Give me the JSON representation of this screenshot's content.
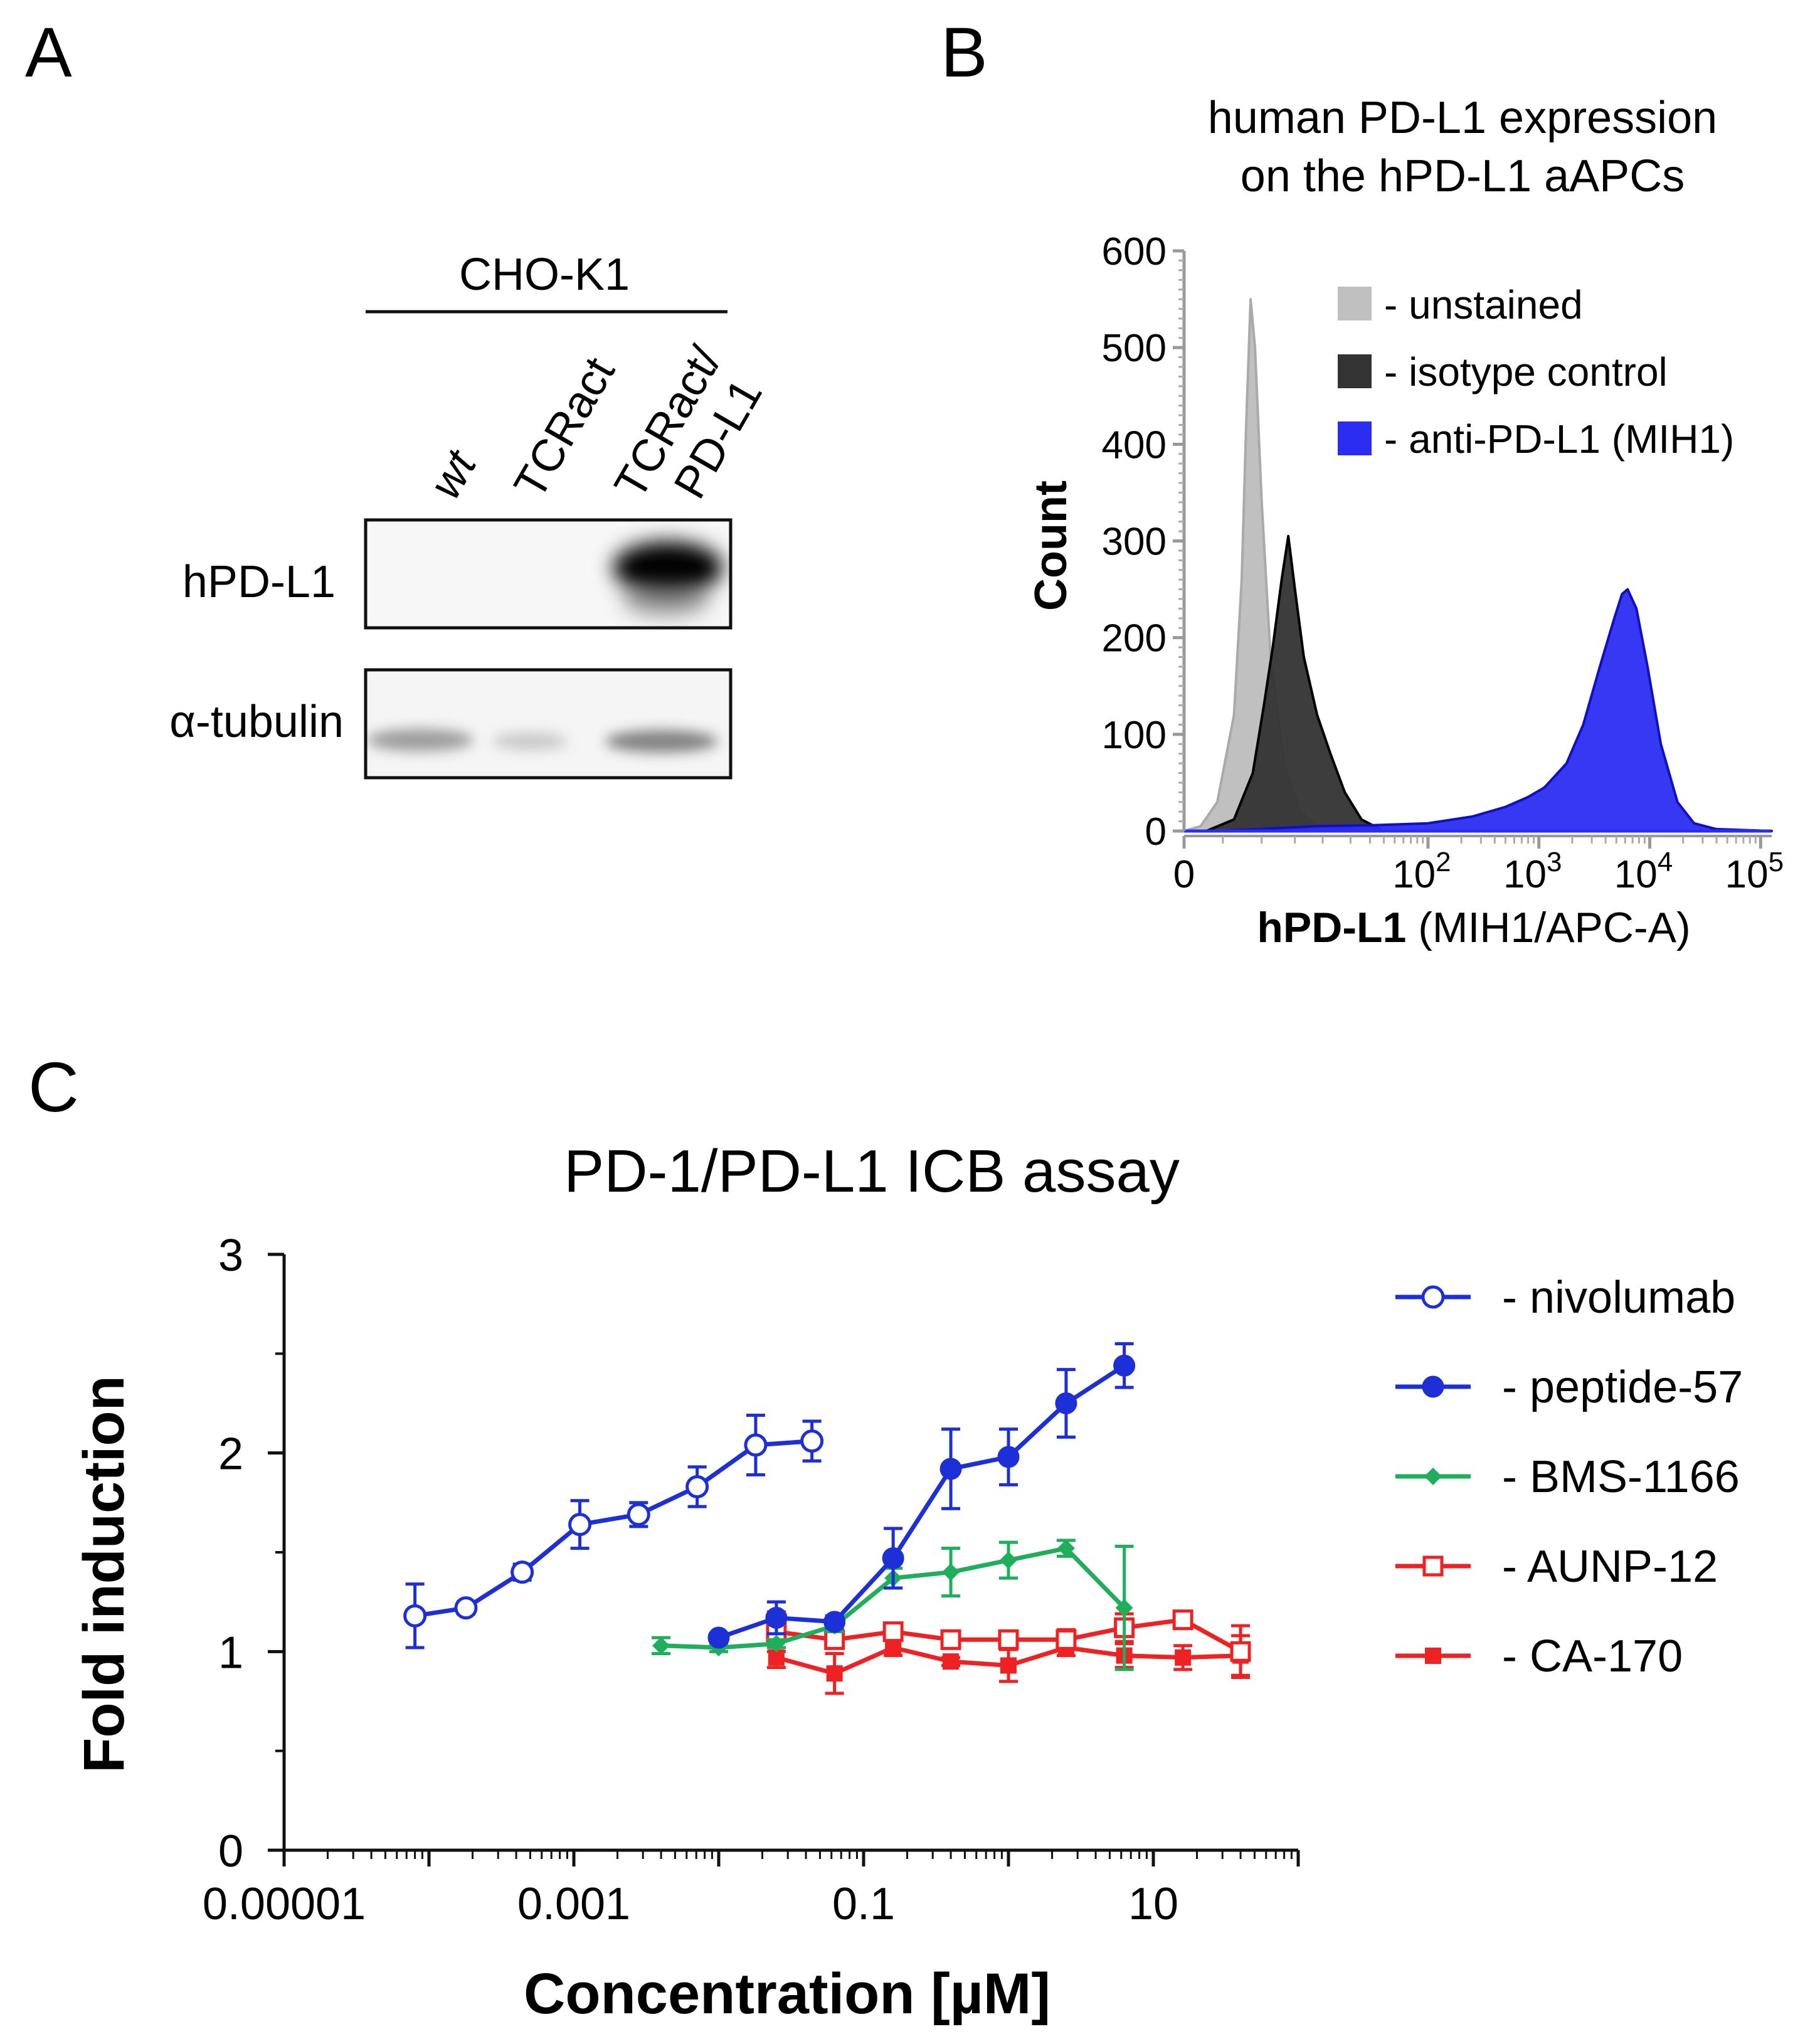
{
  "panels": {
    "a": {
      "letter": "A",
      "cell_line": "CHO-K1",
      "lanes": [
        "wt",
        "TCRact",
        "TCRact/",
        "PD-L1"
      ],
      "blots": [
        {
          "label": "hPD-L1",
          "bands": [
            0,
            0,
            1
          ]
        },
        {
          "label": "α-tubulin",
          "bands": [
            0.55,
            0.25,
            0.65
          ]
        }
      ]
    },
    "b": {
      "letter": "B",
      "title_line1": "human PD-L1 expression",
      "title_line2": "on the hPD-L1 aAPCs",
      "ylabel": "Count",
      "xlabel_bold": "hPD-L1",
      "xlabel_rest": " (MIH1/APC-A)",
      "x_tick_zero": "0",
      "x_tick_base": "10",
      "x_tick_exponents": [
        "2",
        "3",
        "4",
        "5"
      ]
    },
    "c": {
      "letter": "C"
    }
  },
  "colors": {
    "nivolumab": "#1d2fd6",
    "peptide": "#1d2fd6",
    "bms": "#1fae5c",
    "aunp": "#ee2222",
    "ca170": "#ee2222",
    "unstained": "#c0c0c0",
    "isotype": "#333333",
    "antipdl1": "#2b2df2"
  },
  "chart_data": [
    {
      "type": "area",
      "panel": "B",
      "title": "human PD-L1 expression on the hPD-L1 aAPCs",
      "xlabel": "hPD-L1 (MIH1/APC-A)",
      "ylabel": "Count",
      "xscale": "biexponential (log10)",
      "xlim": [
        0,
        5.3
      ],
      "ylim": [
        0,
        600
      ],
      "yticks": [
        0,
        100,
        200,
        300,
        400,
        500,
        600
      ],
      "xtick_labels": [
        "0",
        "10²",
        "10³",
        "10⁴",
        "10⁵"
      ],
      "legend": "top-right",
      "series": [
        {
          "name": "- unstained",
          "color_key": "unstained",
          "points": [
            [
              0,
              0
            ],
            [
              0.15,
              5
            ],
            [
              0.3,
              30
            ],
            [
              0.45,
              120
            ],
            [
              0.52,
              260
            ],
            [
              0.56,
              420
            ],
            [
              0.6,
              550
            ],
            [
              0.64,
              500
            ],
            [
              0.7,
              340
            ],
            [
              0.78,
              180
            ],
            [
              0.9,
              70
            ],
            [
              1.05,
              20
            ],
            [
              1.2,
              5
            ],
            [
              1.4,
              0
            ]
          ]
        },
        {
          "name": "- isotype control",
          "color_key": "isotype",
          "points": [
            [
              0.2,
              0
            ],
            [
              0.45,
              12
            ],
            [
              0.62,
              60
            ],
            [
              0.72,
              130
            ],
            [
              0.8,
              190
            ],
            [
              0.88,
              260
            ],
            [
              0.94,
              305
            ],
            [
              1.0,
              250
            ],
            [
              1.08,
              180
            ],
            [
              1.2,
              120
            ],
            [
              1.32,
              80
            ],
            [
              1.45,
              40
            ],
            [
              1.6,
              12
            ],
            [
              1.8,
              0
            ]
          ]
        },
        {
          "name": "- anti-PD-L1 (MIH1)",
          "color_key": "antipdl1",
          "points": [
            [
              0.3,
              0
            ],
            [
              1.2,
              5
            ],
            [
              1.7,
              6
            ],
            [
              2.2,
              8
            ],
            [
              2.6,
              15
            ],
            [
              2.9,
              25
            ],
            [
              3.1,
              35
            ],
            [
              3.25,
              45
            ],
            [
              3.45,
              70
            ],
            [
              3.6,
              110
            ],
            [
              3.75,
              170
            ],
            [
              3.88,
              220
            ],
            [
              3.95,
              245
            ],
            [
              4.0,
              250
            ],
            [
              4.08,
              230
            ],
            [
              4.18,
              170
            ],
            [
              4.3,
              90
            ],
            [
              4.45,
              30
            ],
            [
              4.6,
              8
            ],
            [
              4.8,
              2
            ],
            [
              5.3,
              0
            ]
          ]
        }
      ]
    },
    {
      "type": "line",
      "panel": "C",
      "title": "PD-1/PD-L1 ICB assay",
      "xlabel": "Concentration [µM]",
      "ylabel": "Fold induction",
      "xscale": "log10",
      "xlim": [
        1e-05,
        100
      ],
      "ylim": [
        0,
        3
      ],
      "xtick_labels": [
        "0.00001",
        "0.001",
        "0.1",
        "10"
      ],
      "yticks": [
        "0",
        "1",
        "2",
        "3"
      ],
      "legend": "right",
      "series": [
        {
          "name": "-  nivolumab",
          "color_key": "nivolumab",
          "marker": "open-circle",
          "x": [
            8e-05,
            0.00018,
            0.00044,
            0.0011,
            0.0028,
            0.0071,
            0.018,
            0.044
          ],
          "y": [
            1.18,
            1.22,
            1.4,
            1.64,
            1.69,
            1.83,
            2.04,
            2.06
          ],
          "err": [
            0.16,
            0.03,
            0.04,
            0.12,
            0.06,
            0.1,
            0.15,
            0.1
          ]
        },
        {
          "name": "-  peptide-57",
          "color_key": "peptide",
          "marker": "filled-circle",
          "x": [
            0.01,
            0.025,
            0.063,
            0.16,
            0.4,
            1.0,
            2.5,
            6.3
          ],
          "y": [
            1.07,
            1.17,
            1.15,
            1.47,
            1.92,
            1.98,
            2.25,
            2.44
          ],
          "err": [
            0.02,
            0.08,
            0.03,
            0.15,
            0.2,
            0.14,
            0.17,
            0.11
          ]
        },
        {
          "name": "-  BMS-1166",
          "color_key": "bms",
          "marker": "diamond",
          "x": [
            0.004,
            0.01,
            0.025,
            0.063,
            0.16,
            0.4,
            1.0,
            2.5,
            6.3
          ],
          "y": [
            1.03,
            1.02,
            1.04,
            1.13,
            1.37,
            1.4,
            1.46,
            1.52,
            1.22
          ],
          "err": [
            0.04,
            0.02,
            0.02,
            0.03,
            0.05,
            0.12,
            0.09,
            0.04,
            0.31
          ]
        },
        {
          "name": "-  AUNP-12",
          "color_key": "aunp",
          "marker": "open-square",
          "x": [
            0.025,
            0.063,
            0.16,
            0.4,
            1.0,
            2.5,
            6.3,
            16,
            40
          ],
          "y": [
            1.1,
            1.06,
            1.1,
            1.06,
            1.06,
            1.06,
            1.12,
            1.16,
            1.0
          ],
          "err": [
            0.1,
            0.03,
            0.03,
            0.03,
            0.03,
            0.05,
            0.07,
            0.03,
            0.13
          ]
        },
        {
          "name": "-  CA-170",
          "color_key": "ca170",
          "marker": "filled-square",
          "x": [
            0.025,
            0.063,
            0.16,
            0.4,
            1.0,
            2.5,
            6.3,
            16,
            40
          ],
          "y": [
            0.97,
            0.89,
            1.02,
            0.95,
            0.93,
            1.02,
            0.98,
            0.97,
            0.98
          ],
          "err": [
            0.05,
            0.1,
            0.04,
            0.02,
            0.08,
            0.04,
            0.06,
            0.06,
            0.1
          ]
        }
      ]
    }
  ]
}
